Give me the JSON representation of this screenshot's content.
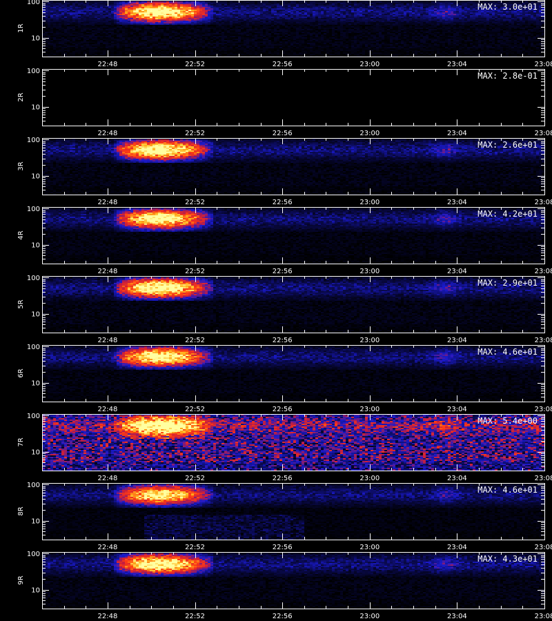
{
  "chart_data": {
    "type": "heatmap",
    "x_tick_labels": [
      "22:48",
      "22:52",
      "22:56",
      "23:00",
      "23:04",
      "23:08"
    ],
    "x_range": [
      "22:45",
      "23:08"
    ],
    "y_scale": "log",
    "y_range": [
      3,
      110
    ],
    "y_tick_labels": [
      "10",
      "100"
    ],
    "xlabel": "",
    "colormap": [
      "#000000",
      "#0a0a50",
      "#1a1acc",
      "#c81e3c",
      "#ff3c14",
      "#ffb41e",
      "#ffffa0"
    ],
    "panels": [
      {
        "label": "1R",
        "max_text": "MAX: 3.0e+01",
        "intensity": 1.0,
        "noise": 0.08,
        "low_band": 0.0
      },
      {
        "label": "2R",
        "max_text": "MAX: 2.8e-01",
        "intensity": 0.0,
        "noise": 0.0,
        "low_band": 0.0
      },
      {
        "label": "3R",
        "max_text": "MAX: 2.6e+01",
        "intensity": 1.0,
        "noise": 0.08,
        "low_band": 0.0
      },
      {
        "label": "4R",
        "max_text": "MAX: 4.2e+01",
        "intensity": 0.95,
        "noise": 0.07,
        "low_band": 0.0
      },
      {
        "label": "5R",
        "max_text": "MAX: 2.9e+01",
        "intensity": 1.0,
        "noise": 0.08,
        "low_band": 0.0
      },
      {
        "label": "6R",
        "max_text": "MAX: 4.6e+01",
        "intensity": 0.95,
        "noise": 0.07,
        "low_band": 0.0
      },
      {
        "label": "7R",
        "max_text": "MAX: 5.4e+00",
        "intensity": 0.85,
        "noise": 0.35,
        "low_band": 0.3
      },
      {
        "label": "8R",
        "max_text": "MAX: 4.6e+01",
        "intensity": 0.9,
        "noise": 0.06,
        "low_band": 0.2
      },
      {
        "label": "9R",
        "max_text": "MAX: 4.3e+01",
        "intensity": 1.0,
        "noise": 0.08,
        "low_band": 0.0
      }
    ]
  }
}
